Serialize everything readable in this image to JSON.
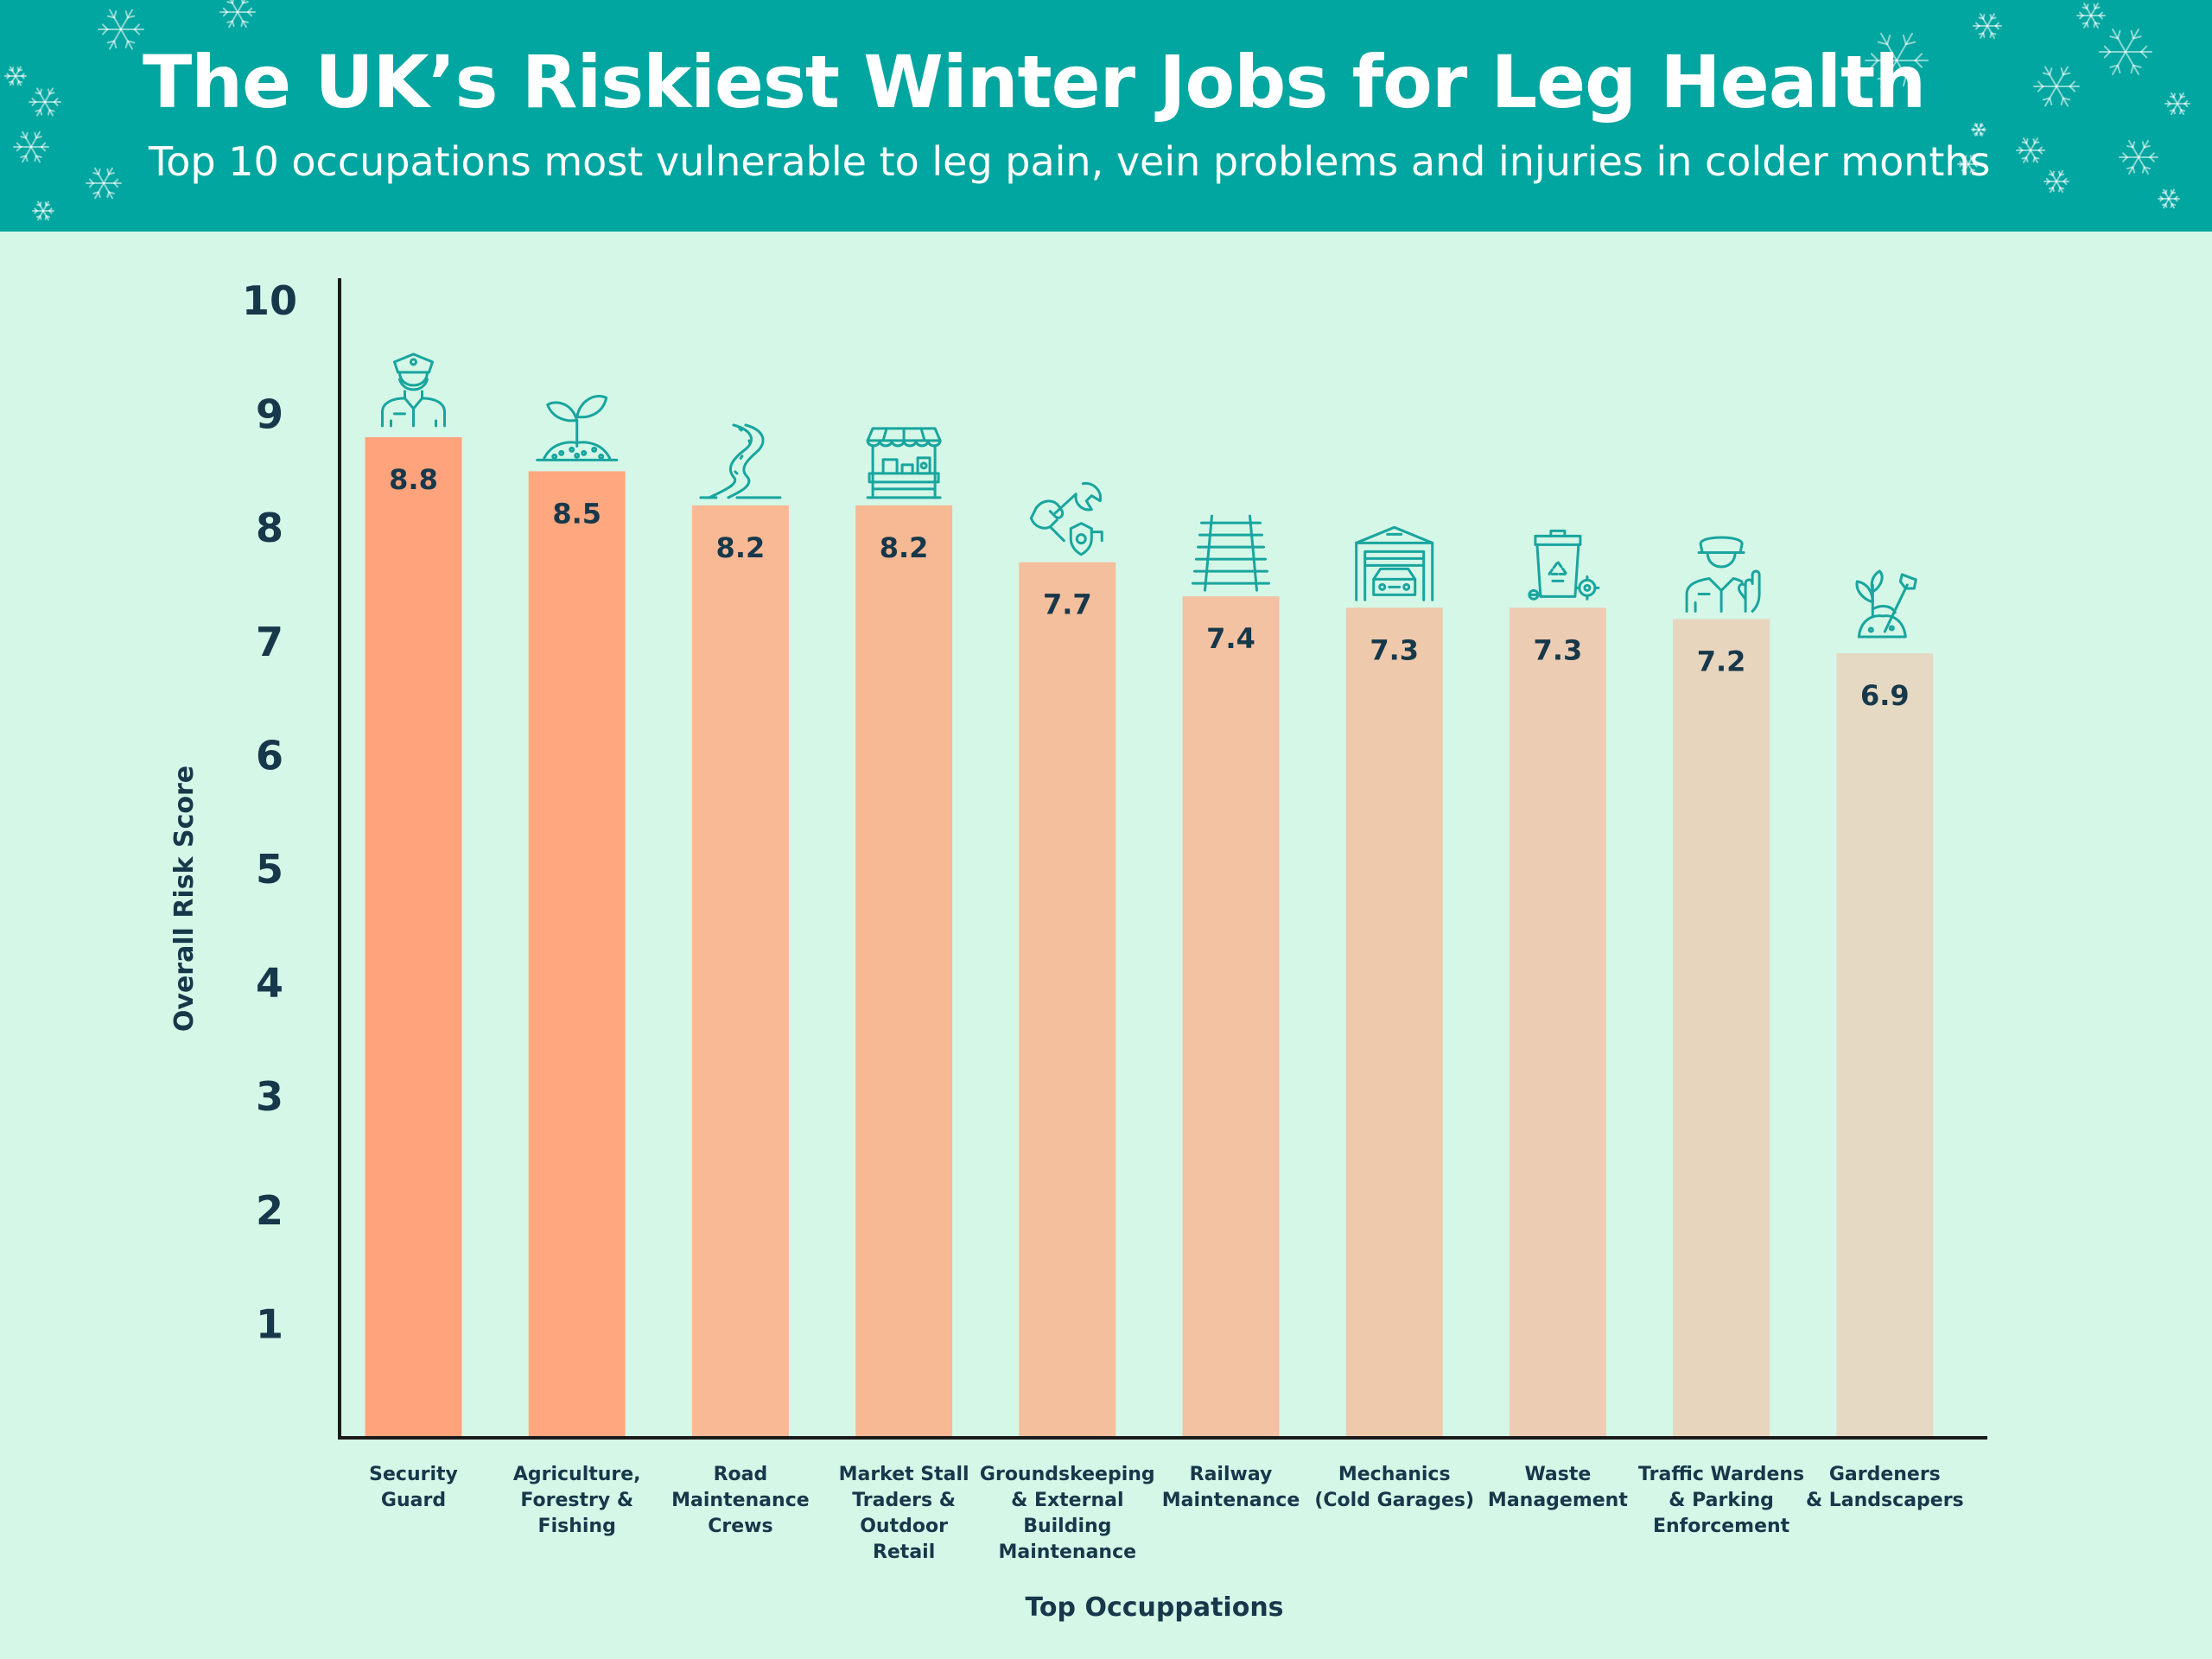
{
  "header": {
    "title": "The UK’s Riskiest Winter Jobs for Leg Health",
    "subtitle": "Top 10 occupations most vulnerable to leg pain, vein problems and injuries in colder months"
  },
  "colors": {
    "header_bg": "#00a69f",
    "page_bg": "#d5f7e8",
    "icon": "#18a59e",
    "text": "#17384a"
  },
  "chart_data": {
    "type": "bar",
    "title": "",
    "xlabel": "Top Occuppations",
    "ylabel": "Overall Risk Score",
    "ylim": [
      0,
      10
    ],
    "yticks": [
      1,
      2,
      3,
      4,
      5,
      6,
      7,
      8,
      9,
      10
    ],
    "grid": false,
    "categories": [
      "Security Guard",
      "Agriculture, Forestry & Fishing",
      "Road Maintenance Crews",
      "Market Stall Traders & Outdoor Retail",
      "Groundskeeping & External Building Maintenance",
      "Railway Maintenance",
      "Mechanics (Cold Garages)",
      "Waste Management",
      "Traffic Wardens & Parking Enforcement",
      "Gardeners & Landscapers"
    ],
    "category_lines": [
      [
        "Security",
        "Guard"
      ],
      [
        "Agriculture,",
        "Forestry &",
        "Fishing"
      ],
      [
        "Road",
        "Maintenance",
        "Crews"
      ],
      [
        "Market Stall",
        "Traders &",
        "Outdoor",
        "Retail"
      ],
      [
        "Groundskeeping",
        "& External",
        "Building",
        "Maintenance"
      ],
      [
        "Railway",
        "Maintenance"
      ],
      [
        "Mechanics",
        "(Cold Garages)"
      ],
      [
        "Waste",
        "Management"
      ],
      [
        "Traffic Wardens",
        "& Parking",
        "Enforcement"
      ],
      [
        "Gardeners",
        "& Landscapers"
      ]
    ],
    "values": [
      8.8,
      8.5,
      8.2,
      8.2,
      7.7,
      7.4,
      7.3,
      7.3,
      7.2,
      6.9
    ],
    "bar_colors": [
      "#ffa37c",
      "#ffa77f",
      "#f8b994",
      "#f7b994",
      "#f4bf9c",
      "#f2c2a2",
      "#eec9ab",
      "#ecccb2",
      "#e8d5bd",
      "#e6d9c3"
    ],
    "icons": [
      "security-guard-icon",
      "plant-sprout-icon",
      "winding-road-icon",
      "market-stall-icon",
      "wrench-hand-icon",
      "railway-track-icon",
      "garage-car-icon",
      "recycling-bin-icon",
      "traffic-warden-icon",
      "shovel-plant-icon"
    ]
  }
}
